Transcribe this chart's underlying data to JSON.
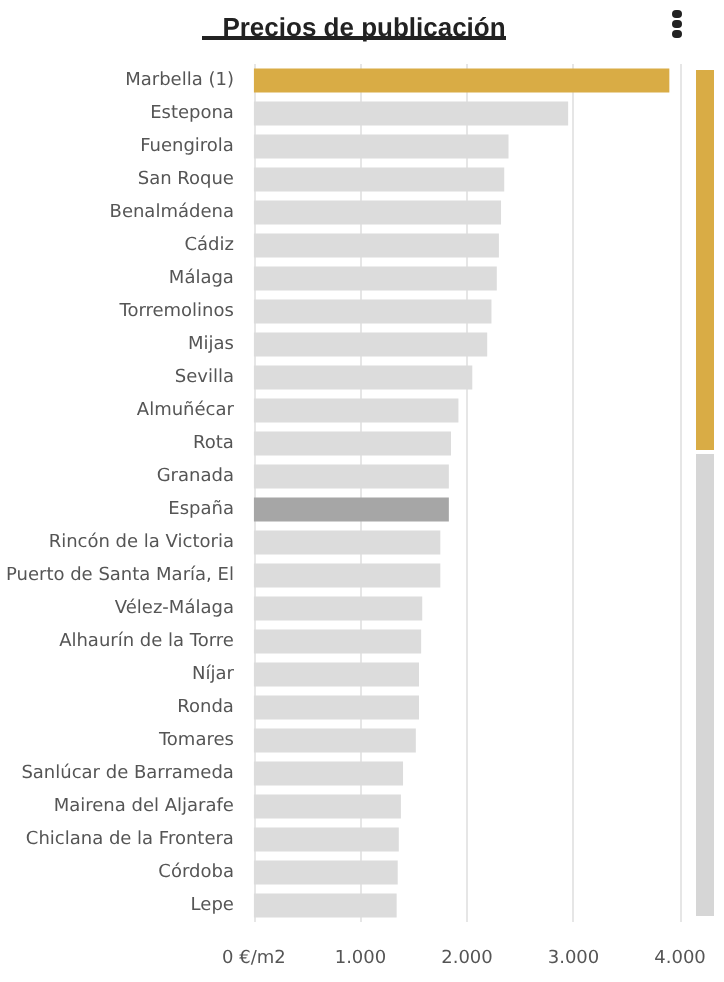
{
  "chart_data": {
    "type": "bar",
    "orientation": "horizontal",
    "title": "Precios de publicación",
    "categories": [
      "Marbella (1)",
      "Estepona",
      "Fuengirola",
      "San Roque",
      "Benalmádena",
      "Cádiz",
      "Málaga",
      "Torremolinos",
      "Mijas",
      "Sevilla",
      "Almuñécar",
      "Rota",
      "Granada",
      "España",
      "Rincón de la Victoria",
      "Puerto de Santa María, El",
      "Vélez-Málaga",
      "Alhaurín de la Torre",
      "Níjar",
      "Ronda",
      "Tomares",
      "Sanlúcar de Barrameda",
      "Mairena del Aljarafe",
      "Chiclana de la Frontera",
      "Córdoba",
      "Lepe"
    ],
    "values": [
      3900,
      2950,
      2390,
      2350,
      2320,
      2300,
      2280,
      2230,
      2190,
      2050,
      1920,
      1850,
      1830,
      1830,
      1750,
      1750,
      1580,
      1570,
      1550,
      1550,
      1520,
      1400,
      1380,
      1360,
      1350,
      1340
    ],
    "colors": [
      "#d9ac45",
      "#dcdcdc",
      "#dcdcdc",
      "#dcdcdc",
      "#dcdcdc",
      "#dcdcdc",
      "#dcdcdc",
      "#dcdcdc",
      "#dcdcdc",
      "#dcdcdc",
      "#dcdcdc",
      "#dcdcdc",
      "#dcdcdc",
      "#a6a6a6",
      "#dcdcdc",
      "#dcdcdc",
      "#dcdcdc",
      "#dcdcdc",
      "#dcdcdc",
      "#dcdcdc",
      "#dcdcdc",
      "#dcdcdc",
      "#dcdcdc",
      "#dcdcdc",
      "#dcdcdc",
      "#dcdcdc"
    ],
    "xlim": [
      0,
      4000
    ],
    "xticks": [
      {
        "value": 0,
        "label": "0 €/m2"
      },
      {
        "value": 1000,
        "label": "1.000"
      },
      {
        "value": 2000,
        "label": "2.000"
      },
      {
        "value": 3000,
        "label": "3.000"
      },
      {
        "value": 4000,
        "label": "4.000"
      }
    ],
    "grid": "x"
  }
}
